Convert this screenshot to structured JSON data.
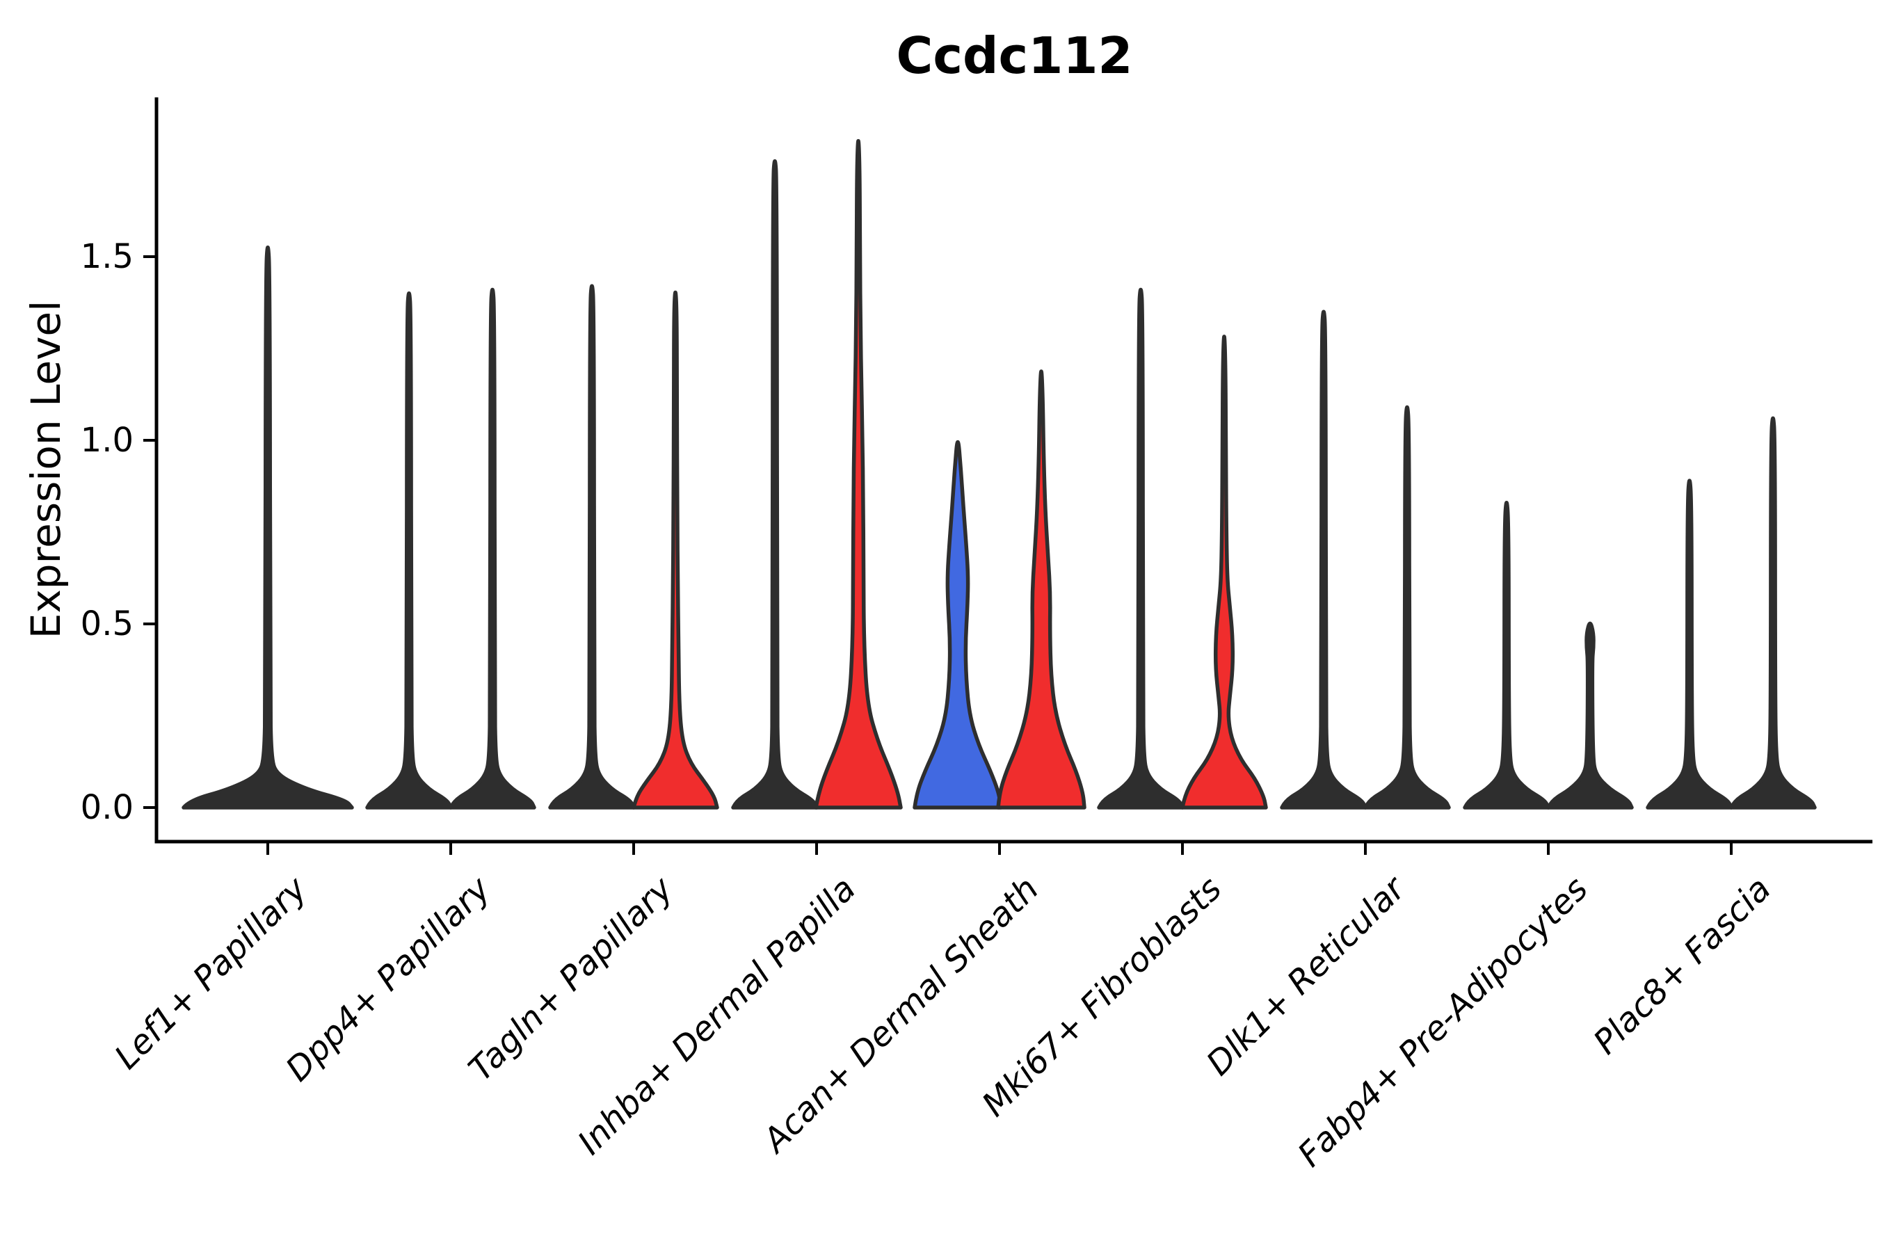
{
  "title": "Ccdc112",
  "ylabel": "Expression Level",
  "colors": {
    "red": "#f02d2d",
    "blue": "#4169e1",
    "violin_outline": "#2e2e2e",
    "axis": "#000000",
    "background": "#ffffff"
  },
  "y_axis": {
    "tick_values": [
      0.0,
      0.5,
      1.0,
      1.5
    ],
    "tick_labels": [
      "0.0",
      "0.5",
      "1.0",
      "1.5"
    ]
  },
  "categories": [
    "Lef1+ Papillary",
    "Dpp4+ Papillary",
    "Tagln+ Papillary",
    "Inhba+ Dermal Papilla",
    "Acan+ Dermal Sheath",
    "Mki67+ Fibroblasts",
    "Dlk1+ Reticular",
    "Fabp4+ Pre-Adipocytes",
    "Plac8+ Fascia"
  ],
  "chart_data": {
    "type": "violin",
    "title": "Ccdc112",
    "ylabel": "Expression Level",
    "xlabel": "",
    "ylim": [
      -0.09,
      1.93
    ],
    "y_ticks": [
      0.0,
      0.5,
      1.0,
      1.5
    ],
    "grid": false,
    "legend": "none",
    "categories": [
      "Lef1+ Papillary",
      "Dpp4+ Papillary",
      "Tagln+ Papillary",
      "Inhba+ Dermal Papilla",
      "Acan+ Dermal Sheath",
      "Mki67+ Fibroblasts",
      "Dlk1+ Reticular",
      "Fabp4+ Pre-Adipocytes",
      "Plac8+ Fascia"
    ],
    "violins": [
      {
        "category": "Lef1+ Papillary",
        "category_index": 0,
        "slot": "full",
        "fill": "#2e2e2e",
        "max_expression": 1.55,
        "profile": [
          [
            0,
            121
          ],
          [
            0.02,
            112
          ],
          [
            0.05,
            55
          ],
          [
            0.09,
            12
          ],
          [
            0.14,
            5
          ],
          [
            0.3,
            3.5
          ],
          [
            1.45,
            3
          ],
          [
            1.55,
            0
          ]
        ]
      },
      {
        "category": "Dpp4+ Papillary",
        "category_index": 1,
        "slot": "left",
        "fill": "#2e2e2e",
        "max_expression": 1.42,
        "profile": [
          [
            0,
            60
          ],
          [
            0.02,
            55
          ],
          [
            0.05,
            28
          ],
          [
            0.09,
            9
          ],
          [
            0.14,
            4.5
          ],
          [
            0.3,
            3.2
          ],
          [
            1.34,
            3
          ],
          [
            1.42,
            0
          ]
        ]
      },
      {
        "category": "Dpp4+ Papillary",
        "category_index": 1,
        "slot": "right",
        "fill": "#2e2e2e",
        "max_expression": 1.43,
        "profile": [
          [
            0,
            60
          ],
          [
            0.02,
            55
          ],
          [
            0.05,
            28
          ],
          [
            0.09,
            9
          ],
          [
            0.14,
            4.5
          ],
          [
            0.3,
            3.2
          ],
          [
            1.35,
            3
          ],
          [
            1.43,
            0
          ]
        ]
      },
      {
        "category": "Tagln+ Papillary",
        "category_index": 2,
        "slot": "left",
        "fill": "#2e2e2e",
        "max_expression": 1.44,
        "profile": [
          [
            0,
            60
          ],
          [
            0.02,
            55
          ],
          [
            0.05,
            28
          ],
          [
            0.09,
            9
          ],
          [
            0.14,
            4.5
          ],
          [
            0.3,
            3.2
          ],
          [
            1.36,
            3
          ],
          [
            1.44,
            0
          ]
        ]
      },
      {
        "category": "Tagln+ Papillary",
        "category_index": 2,
        "slot": "right",
        "fill": "#f02d2d",
        "max_expression": 1.42,
        "profile": [
          [
            0,
            60
          ],
          [
            0.03,
            56
          ],
          [
            0.07,
            42
          ],
          [
            0.12,
            22
          ],
          [
            0.18,
            10
          ],
          [
            0.28,
            5.5
          ],
          [
            0.45,
            4.5
          ],
          [
            0.6,
            3.5
          ],
          [
            0.8,
            2.8
          ],
          [
            1.1,
            2.2
          ],
          [
            1.35,
            2
          ],
          [
            1.42,
            0
          ]
        ]
      },
      {
        "category": "Inhba+ Dermal Papilla",
        "category_index": 3,
        "slot": "left",
        "fill": "#2e2e2e",
        "max_expression": 1.78,
        "profile": [
          [
            0,
            60
          ],
          [
            0.02,
            55
          ],
          [
            0.05,
            28
          ],
          [
            0.09,
            9
          ],
          [
            0.14,
            4.5
          ],
          [
            0.3,
            3.2
          ],
          [
            1.7,
            3
          ],
          [
            1.78,
            0
          ]
        ]
      },
      {
        "category": "Inhba+ Dermal Papilla",
        "category_index": 3,
        "slot": "right",
        "fill": "#f02d2d",
        "max_expression": 1.84,
        "profile": [
          [
            0,
            61
          ],
          [
            0.04,
            57
          ],
          [
            0.1,
            46
          ],
          [
            0.18,
            28
          ],
          [
            0.28,
            13
          ],
          [
            0.45,
            8
          ],
          [
            0.65,
            7.5
          ],
          [
            0.85,
            7
          ],
          [
            1.0,
            6
          ],
          [
            1.15,
            4.5
          ],
          [
            1.3,
            3.2
          ],
          [
            1.5,
            2.4
          ],
          [
            1.74,
            2
          ],
          [
            1.84,
            0
          ]
        ]
      },
      {
        "category": "Acan+ Dermal Sheath",
        "category_index": 4,
        "slot": "left",
        "fill": "#4169e1",
        "max_expression": 1.02,
        "profile": [
          [
            0,
            62
          ],
          [
            0.04,
            59
          ],
          [
            0.1,
            47
          ],
          [
            0.17,
            30
          ],
          [
            0.25,
            17
          ],
          [
            0.35,
            12
          ],
          [
            0.45,
            11
          ],
          [
            0.55,
            14
          ],
          [
            0.63,
            15
          ],
          [
            0.72,
            12
          ],
          [
            0.82,
            8
          ],
          [
            0.92,
            4.5
          ],
          [
            1.02,
            0
          ]
        ]
      },
      {
        "category": "Acan+ Dermal Sheath",
        "category_index": 4,
        "slot": "right",
        "fill": "#f02d2d",
        "max_expression": 1.21,
        "profile": [
          [
            0,
            62
          ],
          [
            0.04,
            60
          ],
          [
            0.1,
            50
          ],
          [
            0.17,
            34
          ],
          [
            0.26,
            20
          ],
          [
            0.36,
            14
          ],
          [
            0.48,
            12.5
          ],
          [
            0.58,
            13
          ],
          [
            0.68,
            10
          ],
          [
            0.8,
            6
          ],
          [
            0.95,
            3.5
          ],
          [
            1.12,
            2.2
          ],
          [
            1.21,
            0
          ]
        ]
      },
      {
        "category": "Mki67+ Fibroblasts",
        "category_index": 5,
        "slot": "left",
        "fill": "#2e2e2e",
        "max_expression": 1.43,
        "profile": [
          [
            0,
            60
          ],
          [
            0.02,
            55
          ],
          [
            0.05,
            28
          ],
          [
            0.09,
            9
          ],
          [
            0.14,
            4.5
          ],
          [
            0.3,
            3.2
          ],
          [
            1.35,
            3
          ],
          [
            1.43,
            0
          ]
        ]
      },
      {
        "category": "Mki67+ Fibroblasts",
        "category_index": 5,
        "slot": "right",
        "fill": "#f02d2d",
        "max_expression": 1.31,
        "profile": [
          [
            0,
            60
          ],
          [
            0.03,
            57
          ],
          [
            0.08,
            44
          ],
          [
            0.13,
            24
          ],
          [
            0.19,
            10
          ],
          [
            0.25,
            5.5
          ],
          [
            0.3,
            8
          ],
          [
            0.38,
            12.5
          ],
          [
            0.47,
            12
          ],
          [
            0.55,
            8
          ],
          [
            0.62,
            4.5
          ],
          [
            0.75,
            3.2
          ],
          [
            0.95,
            2.5
          ],
          [
            1.2,
            2
          ],
          [
            1.31,
            0
          ]
        ]
      },
      {
        "category": "Dlk1+ Reticular",
        "category_index": 6,
        "slot": "left",
        "fill": "#2e2e2e",
        "max_expression": 1.37,
        "profile": [
          [
            0,
            60
          ],
          [
            0.02,
            55
          ],
          [
            0.05,
            28
          ],
          [
            0.09,
            9
          ],
          [
            0.14,
            4.5
          ],
          [
            0.3,
            3.2
          ],
          [
            1.29,
            3
          ],
          [
            1.37,
            0
          ]
        ]
      },
      {
        "category": "Dlk1+ Reticular",
        "category_index": 6,
        "slot": "right",
        "fill": "#2e2e2e",
        "max_expression": 1.11,
        "profile": [
          [
            0,
            60
          ],
          [
            0.02,
            55
          ],
          [
            0.05,
            28
          ],
          [
            0.09,
            9
          ],
          [
            0.14,
            4.5
          ],
          [
            0.3,
            3.2
          ],
          [
            1.03,
            3
          ],
          [
            1.11,
            0
          ]
        ]
      },
      {
        "category": "Fabp4+ Pre-Adipocytes",
        "category_index": 7,
        "slot": "left",
        "fill": "#2e2e2e",
        "max_expression": 0.85,
        "profile": [
          [
            0,
            60
          ],
          [
            0.02,
            55
          ],
          [
            0.05,
            28
          ],
          [
            0.09,
            9
          ],
          [
            0.14,
            4.5
          ],
          [
            0.3,
            3.2
          ],
          [
            0.77,
            3
          ],
          [
            0.85,
            0
          ]
        ]
      },
      {
        "category": "Fabp4+ Pre-Adipocytes",
        "category_index": 7,
        "slot": "right",
        "fill": "#2e2e2e",
        "max_expression": 0.51,
        "profile": [
          [
            0,
            60
          ],
          [
            0.02,
            55
          ],
          [
            0.05,
            28
          ],
          [
            0.09,
            8
          ],
          [
            0.14,
            4
          ],
          [
            0.4,
            3
          ],
          [
            0.435,
            5
          ],
          [
            0.475,
            5
          ],
          [
            0.51,
            0
          ]
        ]
      },
      {
        "category": "Plac8+ Fascia",
        "category_index": 8,
        "slot": "left",
        "fill": "#2e2e2e",
        "max_expression": 0.91,
        "profile": [
          [
            0,
            60
          ],
          [
            0.02,
            55
          ],
          [
            0.05,
            28
          ],
          [
            0.09,
            9
          ],
          [
            0.14,
            4.5
          ],
          [
            0.3,
            3.2
          ],
          [
            0.83,
            3
          ],
          [
            0.91,
            0
          ]
        ]
      },
      {
        "category": "Plac8+ Fascia",
        "category_index": 8,
        "slot": "right",
        "fill": "#2e2e2e",
        "max_expression": 1.08,
        "profile": [
          [
            0,
            60
          ],
          [
            0.02,
            55
          ],
          [
            0.05,
            28
          ],
          [
            0.09,
            9
          ],
          [
            0.14,
            4.5
          ],
          [
            0.3,
            3.2
          ],
          [
            1.0,
            3
          ],
          [
            1.08,
            0
          ]
        ]
      }
    ]
  }
}
